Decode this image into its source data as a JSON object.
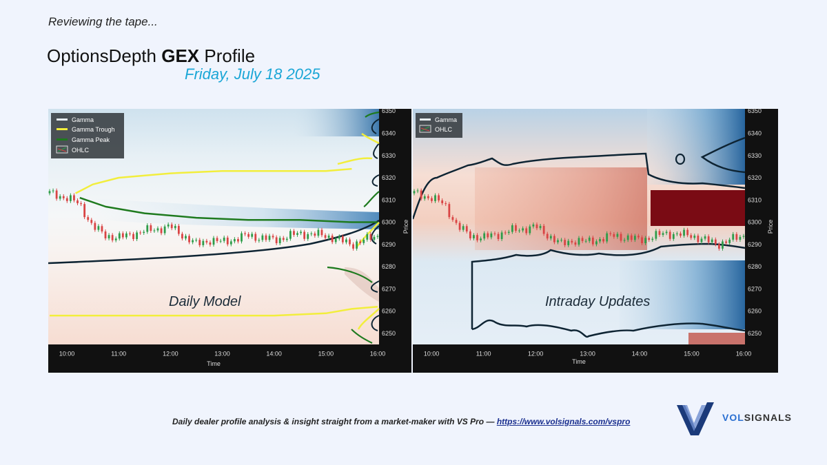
{
  "header": {
    "intro": "Reviewing the tape...",
    "title_prefix": "OptionsDepth ",
    "title_bold": "GEX",
    "title_suffix": " Profile",
    "date": "Friday, July 18 2025"
  },
  "footer": {
    "text": "Daily dealer profile analysis & insight straight from a market-maker with VS Pro — ",
    "link": "https://www.volsignals.com/vspro"
  },
  "logo": {
    "text_a": "VOL",
    "text_b": "SIGNALS"
  },
  "colors": {
    "background": "#f0f4fd",
    "date": "#1aa6d6",
    "trough": "#f2ee3c",
    "peak": "#1e7a1e",
    "contour": "#0e2433"
  },
  "chart_data": [
    {
      "type": "heatmap",
      "annotation": "Daily Model",
      "xlabel": "Time",
      "ylabel": "Price",
      "x_ticks": [
        "10:00",
        "11:00",
        "12:00",
        "13:00",
        "14:00",
        "15:00",
        "16:00"
      ],
      "y_ticks": [
        6250,
        6260,
        6270,
        6280,
        6290,
        6300,
        6310,
        6320,
        6330,
        6340,
        6350
      ],
      "ylim": [
        6245,
        6351
      ],
      "xlim": [
        "09:40",
        "16:00"
      ],
      "legend": [
        "Gamma",
        "Gamma Trough",
        "Gamma Peak",
        "OHLC"
      ],
      "legend_position": "top-left",
      "series": [
        {
          "name": "OHLC",
          "x": [
            "09:40",
            "10:00",
            "10:15",
            "10:30",
            "10:45",
            "11:00",
            "11:30",
            "12:00",
            "12:15",
            "12:30",
            "12:45",
            "13:00",
            "13:30",
            "14:00",
            "14:30",
            "15:00",
            "15:30",
            "16:00"
          ],
          "y": [
            6313,
            6311,
            6308,
            6298,
            6294,
            6293,
            6296,
            6298,
            6294,
            6290,
            6292,
            6291,
            6294,
            6292,
            6295,
            6294,
            6290,
            6294
          ]
        },
        {
          "name": "Gamma Trough",
          "x": [
            "10:10",
            "10:30",
            "11:00",
            "12:00",
            "13:00",
            "14:00",
            "15:00",
            "15:30"
          ],
          "y": [
            6313,
            6317,
            6320,
            6322,
            6323,
            6323,
            6323,
            6324
          ]
        },
        {
          "name": "Gamma Peak",
          "x": [
            "10:15",
            "10:45",
            "11:30",
            "12:30",
            "13:30",
            "14:30",
            "15:30",
            "16:00"
          ],
          "y": [
            6311,
            6307,
            6304,
            6302,
            6301,
            6301,
            6300,
            6300
          ]
        },
        {
          "name": "Gamma Trough",
          "x": [
            "09:40",
            "11:00",
            "12:00",
            "13:00",
            "14:00",
            "15:00",
            "15:30",
            "16:00"
          ],
          "y": [
            6258,
            6258,
            6258,
            6258,
            6258,
            6259,
            6261,
            6262
          ]
        }
      ]
    },
    {
      "type": "heatmap",
      "annotation": "Intraday Updates",
      "xlabel": "Time",
      "ylabel": "Price",
      "x_ticks": [
        "10:00",
        "11:00",
        "12:00",
        "13:00",
        "14:00",
        "15:00",
        "16:00"
      ],
      "y_ticks": [
        6250,
        6260,
        6270,
        6280,
        6290,
        6300,
        6310,
        6320,
        6330,
        6340,
        6350
      ],
      "ylim": [
        6245,
        6351
      ],
      "xlim": [
        "09:40",
        "16:00"
      ],
      "legend": [
        "Gamma",
        "OHLC"
      ],
      "legend_position": "top-left",
      "series": [
        {
          "name": "OHLC",
          "x": [
            "09:40",
            "10:00",
            "10:15",
            "10:30",
            "10:45",
            "11:00",
            "11:30",
            "12:00",
            "12:15",
            "12:30",
            "12:45",
            "13:00",
            "13:30",
            "14:00",
            "14:30",
            "15:00",
            "15:30",
            "16:00"
          ],
          "y": [
            6313,
            6311,
            6308,
            6298,
            6294,
            6293,
            6296,
            6298,
            6294,
            6290,
            6292,
            6291,
            6294,
            6292,
            6295,
            6294,
            6290,
            6294
          ]
        }
      ]
    }
  ]
}
